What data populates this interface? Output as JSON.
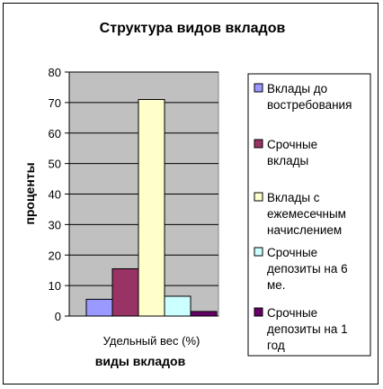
{
  "chart_data": {
    "type": "bar",
    "title": "Структура видов вкладов",
    "xlabel": "виды вкладов",
    "ylabel": "проценты",
    "categories": [
      "Удельный вес (%)"
    ],
    "ylim": [
      0,
      80
    ],
    "yticks": [
      "0",
      "10",
      "20",
      "30",
      "40",
      "50",
      "60",
      "70",
      "80"
    ],
    "grid": true,
    "legend_position": "right",
    "series": [
      {
        "name": "Вклады до востребования",
        "values": [
          5.5
        ],
        "color": "#9999ff",
        "legend_lines": [
          "Вклады до",
          "востребования"
        ]
      },
      {
        "name": "Срочные вклады",
        "values": [
          15.5
        ],
        "color": "#993366",
        "legend_lines": [
          "Срочные",
          "вклады"
        ]
      },
      {
        "name": "Вклады с ежемесечным начислением",
        "values": [
          71
        ],
        "color": "#ffffcc",
        "legend_lines": [
          "Вклады с",
          "ежемесечным",
          "начислением"
        ]
      },
      {
        "name": "Срочные депозиты на 6 ме.",
        "values": [
          6.5
        ],
        "color": "#ccffff",
        "legend_lines": [
          "Срочные",
          "депозиты на 6",
          "ме."
        ]
      },
      {
        "name": "Срочные депозиты на 1 год",
        "values": [
          1.5
        ],
        "color": "#660066",
        "legend_lines": [
          "Срочные",
          "депозиты на 1",
          "год"
        ]
      }
    ],
    "colors": {
      "plot_background": "#c0c0c0",
      "gridline": "#000000"
    }
  }
}
